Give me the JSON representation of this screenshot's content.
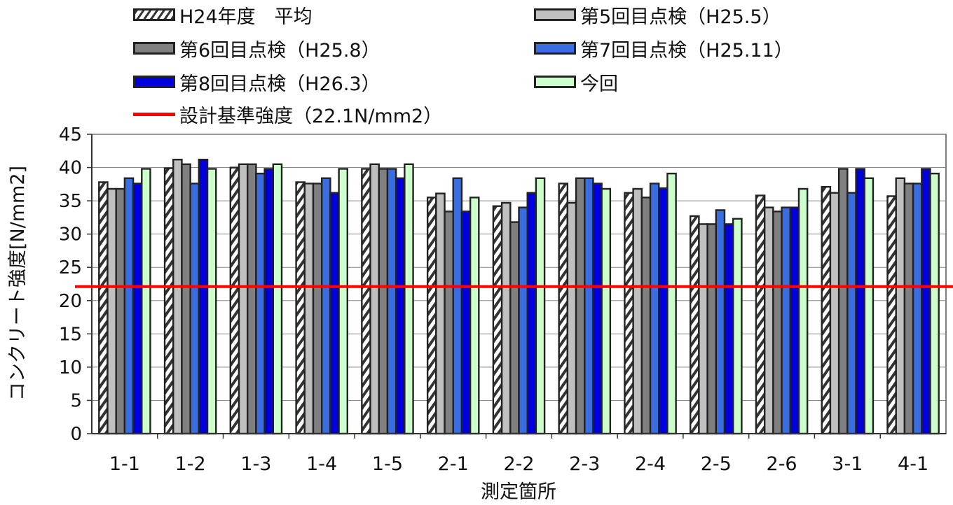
{
  "chart_data": {
    "type": "bar",
    "categories": [
      "1-1",
      "1-2",
      "1-3",
      "1-4",
      "1-5",
      "2-1",
      "2-2",
      "2-3",
      "2-4",
      "2-5",
      "2-6",
      "3-1",
      "4-1"
    ],
    "series": [
      {
        "name": "H24年度　平均",
        "color": "#ffffff",
        "pattern": "hatch",
        "values": [
          37.8,
          39.9,
          40.0,
          37.8,
          39.8,
          35.5,
          34.2,
          37.6,
          36.2,
          32.7,
          35.8,
          37.1,
          35.7
        ]
      },
      {
        "name": "第5回目点検（H25.5）",
        "color": "#c0c0c0",
        "values": [
          36.8,
          41.2,
          40.5,
          37.6,
          40.5,
          36.1,
          34.7,
          34.7,
          36.8,
          31.5,
          34.0,
          36.2,
          38.4
        ]
      },
      {
        "name": "第6回目点検（H25.8）",
        "color": "#808080",
        "values": [
          36.8,
          40.5,
          40.5,
          37.6,
          39.8,
          33.4,
          31.8,
          38.4,
          35.5,
          31.5,
          33.4,
          39.8,
          37.6
        ]
      },
      {
        "name": "第7回目点検（H25.11）",
        "color": "#3a6ee0",
        "values": [
          38.4,
          37.6,
          39.1,
          38.4,
          39.8,
          38.4,
          34.0,
          38.4,
          37.6,
          33.6,
          34.0,
          36.2,
          37.6
        ]
      },
      {
        "name": "第8回目点検（H26.3）",
        "color": "#0000dd",
        "values": [
          37.6,
          41.2,
          39.8,
          36.2,
          38.4,
          33.4,
          36.2,
          37.6,
          36.9,
          31.5,
          34.0,
          39.8,
          39.8
        ]
      },
      {
        "name": "今回",
        "color": "#ccffcc",
        "values": [
          39.8,
          39.8,
          40.5,
          39.8,
          40.5,
          35.5,
          38.4,
          36.8,
          39.1,
          32.3,
          36.8,
          38.4,
          39.1
        ]
      }
    ],
    "reference_line": {
      "name": "設計基準強度（22.1N/mm2）",
      "value": 22.1,
      "color": "#ff0000"
    },
    "xlabel": "測定箇所",
    "ylabel": "コンクリート強度[N/mm2]",
    "ylim": [
      0,
      45
    ],
    "yticks": [
      0,
      5,
      10,
      15,
      20,
      25,
      30,
      35,
      40,
      45
    ],
    "grid": true,
    "legend_position": "top"
  }
}
